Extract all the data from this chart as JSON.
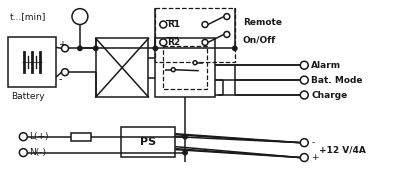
{
  "bg_color": "#ffffff",
  "line_color": "#1a1a1a",
  "dash_color": "#333333",
  "figsize": [
    4.08,
    1.91
  ],
  "dpi": 100,
  "labels": {
    "timer": "t...[min]",
    "battery": "Battery",
    "ps": "PS",
    "r1": "R1",
    "r2": "R2",
    "remote": "Remote",
    "onoff": "On/Off",
    "alarm": "Alarm",
    "bat_mode": "Bat. Mode",
    "charge": "Charge",
    "lplus": "L(+)",
    "nminus": "N(-)",
    "vout": "+12 V/4A",
    "minus": "-",
    "plus": "+"
  }
}
